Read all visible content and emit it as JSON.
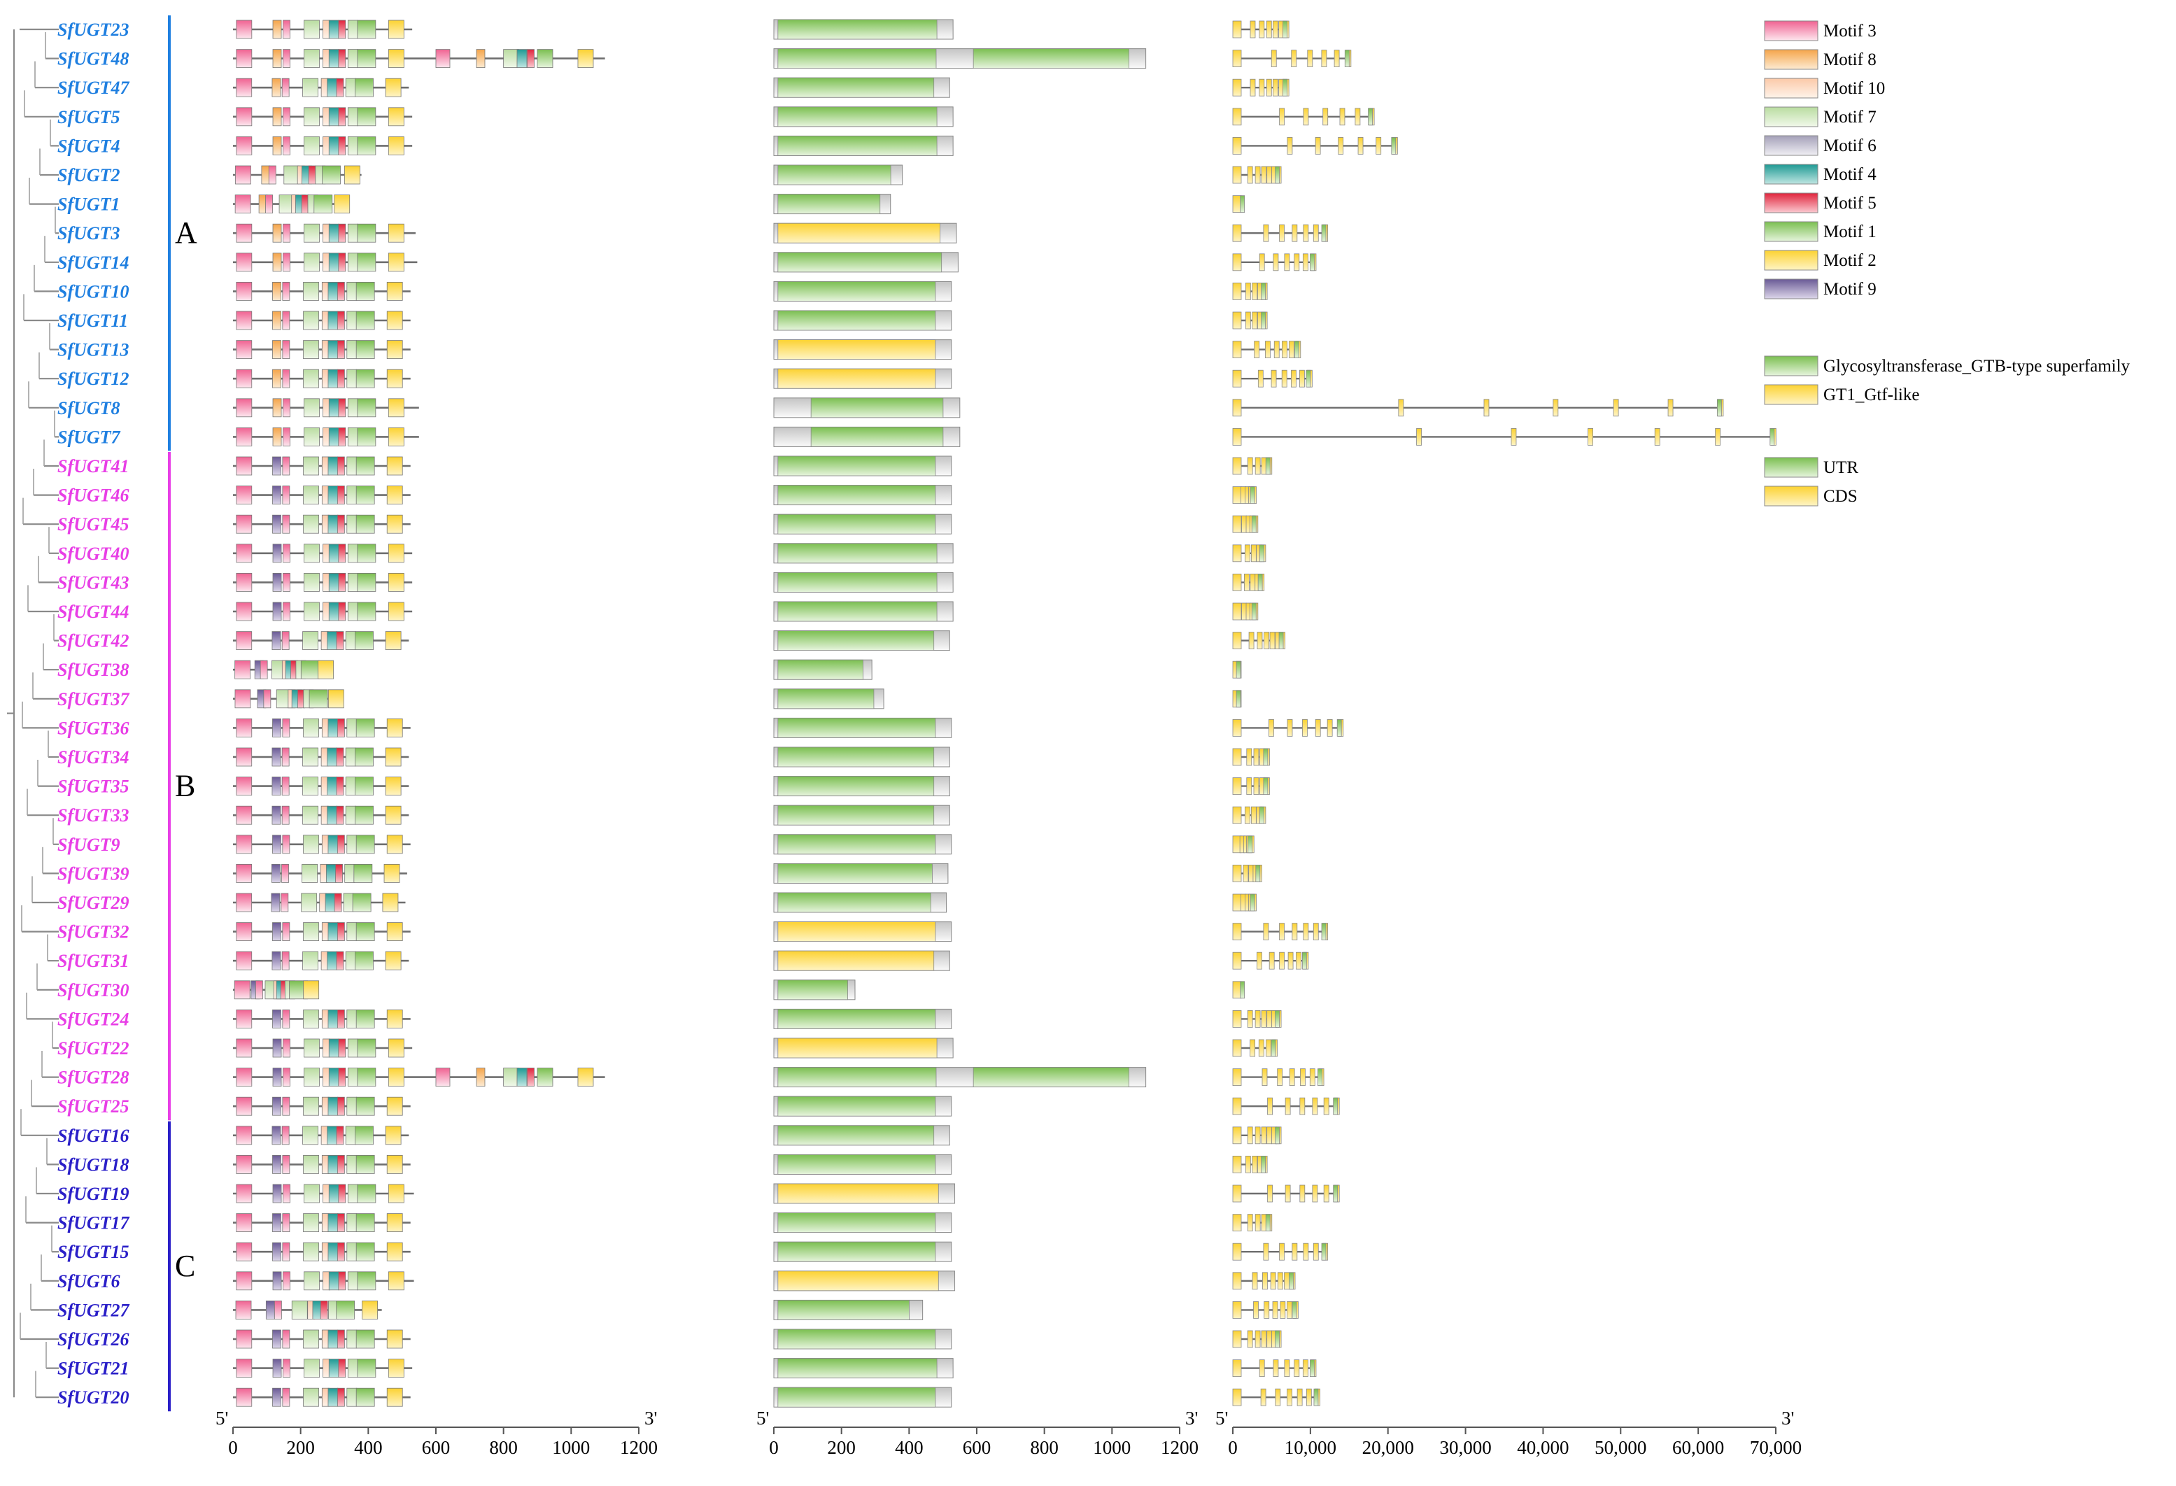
{
  "figure": {
    "clade_labels": [
      "A",
      "B",
      "C"
    ],
    "clade_colors": {
      "A": "#1f7fe0",
      "B": "#e83ee6",
      "C": "#2a1fc8"
    },
    "ends": {
      "five": "5'",
      "three": "3'"
    },
    "axes": [
      {
        "name": "motif-axis",
        "ticks": [
          "0",
          "200",
          "400",
          "600",
          "800",
          "1000",
          "1200"
        ]
      },
      {
        "name": "domain-axis",
        "ticks": [
          "0",
          "200",
          "400",
          "600",
          "800",
          "1000",
          "1200"
        ]
      },
      {
        "name": "gene-axis",
        "ticks": [
          "0",
          "10,000",
          "20,000",
          "30,000",
          "40,000",
          "50,000",
          "60,000",
          "70,000"
        ]
      }
    ]
  },
  "legend": {
    "motifs": [
      {
        "label": "Motif 3",
        "color": "#f06292"
      },
      {
        "label": "Motif 8",
        "color": "#f5a54a"
      },
      {
        "label": "Motif 10",
        "color": "#fbc9a8"
      },
      {
        "label": "Motif 7",
        "color": "#b9dca0"
      },
      {
        "label": "Motif 6",
        "color": "#a4a0b8"
      },
      {
        "label": "Motif 4",
        "color": "#1f9a94"
      },
      {
        "label": "Motif 5",
        "color": "#e0243c"
      },
      {
        "label": "Motif 1",
        "color": "#7bbf50"
      },
      {
        "label": "Motif 2",
        "color": "#fcd232"
      },
      {
        "label": "Motif 9",
        "color": "#6a5a96"
      }
    ],
    "domains": [
      {
        "label": "Glycosyltransferase_GTB-type superfamily",
        "color": "#7bbf50"
      },
      {
        "label": "GT1_Gtf-like",
        "color": "#fcd232"
      }
    ],
    "gene_parts": [
      {
        "label": "UTR",
        "color": "#7bbf50"
      },
      {
        "label": "CDS",
        "color": "#fcd232"
      }
    ]
  },
  "genes": [
    {
      "name": "SfUGT23",
      "clade": "A",
      "protein_length": 530,
      "domain": "GTB",
      "gene_length": 7000
    },
    {
      "name": "SfUGT48",
      "clade": "A",
      "protein_length": 1100,
      "domain": "GTB",
      "gene_length": 15000
    },
    {
      "name": "SfUGT47",
      "clade": "A",
      "protein_length": 520,
      "domain": "GTB",
      "gene_length": 7000
    },
    {
      "name": "SfUGT5",
      "clade": "A",
      "protein_length": 530,
      "domain": "GTB",
      "gene_length": 18000
    },
    {
      "name": "SfUGT4",
      "clade": "A",
      "protein_length": 530,
      "domain": "GTB",
      "gene_length": 21000
    },
    {
      "name": "SfUGT2",
      "clade": "A",
      "protein_length": 380,
      "domain": "GTB",
      "gene_length": 6000
    },
    {
      "name": "SfUGT1",
      "clade": "A",
      "protein_length": 345,
      "domain": "GTB",
      "gene_length": 1500
    },
    {
      "name": "SfUGT3",
      "clade": "A",
      "protein_length": 540,
      "domain": "GT1",
      "gene_length": 12000
    },
    {
      "name": "SfUGT14",
      "clade": "A",
      "protein_length": 545,
      "domain": "GTB",
      "gene_length": 10500
    },
    {
      "name": "SfUGT10",
      "clade": "A",
      "protein_length": 525,
      "domain": "GTB",
      "gene_length": 4200
    },
    {
      "name": "SfUGT11",
      "clade": "A",
      "protein_length": 525,
      "domain": "GTB",
      "gene_length": 4200
    },
    {
      "name": "SfUGT13",
      "clade": "A",
      "protein_length": 525,
      "domain": "GT1",
      "gene_length": 8500
    },
    {
      "name": "SfUGT12",
      "clade": "A",
      "protein_length": 525,
      "domain": "GT1",
      "gene_length": 10000
    },
    {
      "name": "SfUGT8",
      "clade": "A",
      "protein_length": 550,
      "domain": "GTB",
      "gene_length": 63000
    },
    {
      "name": "SfUGT7",
      "clade": "A",
      "protein_length": 550,
      "domain": "GTB",
      "gene_length": 69800
    },
    {
      "name": "SfUGT41",
      "clade": "B",
      "protein_length": 525,
      "domain": "GTB",
      "gene_length": 4800
    },
    {
      "name": "SfUGT46",
      "clade": "B",
      "protein_length": 525,
      "domain": "GTB",
      "gene_length": 2800
    },
    {
      "name": "SfUGT45",
      "clade": "B",
      "protein_length": 525,
      "domain": "GTB",
      "gene_length": 3000
    },
    {
      "name": "SfUGT40",
      "clade": "B",
      "protein_length": 530,
      "domain": "GTB",
      "gene_length": 4000
    },
    {
      "name": "SfUGT43",
      "clade": "B",
      "protein_length": 530,
      "domain": "GTB",
      "gene_length": 3800
    },
    {
      "name": "SfUGT44",
      "clade": "B",
      "protein_length": 530,
      "domain": "GTB",
      "gene_length": 3000
    },
    {
      "name": "SfUGT42",
      "clade": "B",
      "protein_length": 520,
      "domain": "GTB",
      "gene_length": 6500
    },
    {
      "name": "SfUGT38",
      "clade": "B",
      "protein_length": 290,
      "domain": "GTB",
      "gene_length": 1000
    },
    {
      "name": "SfUGT37",
      "clade": "B",
      "protein_length": 325,
      "domain": "GTB",
      "gene_length": 1000
    },
    {
      "name": "SfUGT36",
      "clade": "B",
      "protein_length": 525,
      "domain": "GTB",
      "gene_length": 14000
    },
    {
      "name": "SfUGT34",
      "clade": "B",
      "protein_length": 520,
      "domain": "GTB",
      "gene_length": 4500
    },
    {
      "name": "SfUGT35",
      "clade": "B",
      "protein_length": 520,
      "domain": "GTB",
      "gene_length": 4500
    },
    {
      "name": "SfUGT33",
      "clade": "B",
      "protein_length": 520,
      "domain": "GTB",
      "gene_length": 4000
    },
    {
      "name": "SfUGT9",
      "clade": "B",
      "protein_length": 525,
      "domain": "GTB",
      "gene_length": 2500
    },
    {
      "name": "SfUGT39",
      "clade": "B",
      "protein_length": 515,
      "domain": "GTB",
      "gene_length": 3500
    },
    {
      "name": "SfUGT29",
      "clade": "B",
      "protein_length": 510,
      "domain": "GTB",
      "gene_length": 2800
    },
    {
      "name": "SfUGT32",
      "clade": "B",
      "protein_length": 525,
      "domain": "GT1",
      "gene_length": 12000
    },
    {
      "name": "SfUGT31",
      "clade": "B",
      "protein_length": 520,
      "domain": "GT1",
      "gene_length": 9500
    },
    {
      "name": "SfUGT30",
      "clade": "B",
      "protein_length": 240,
      "domain": "GTB",
      "gene_length": 1500
    },
    {
      "name": "SfUGT24",
      "clade": "B",
      "protein_length": 525,
      "domain": "GTB",
      "gene_length": 6000
    },
    {
      "name": "SfUGT22",
      "clade": "B",
      "protein_length": 530,
      "domain": "GT1",
      "gene_length": 5500
    },
    {
      "name": "SfUGT28",
      "clade": "B",
      "protein_length": 1100,
      "domain": "GTB",
      "gene_length": 11500
    },
    {
      "name": "SfUGT25",
      "clade": "B",
      "protein_length": 525,
      "domain": "GTB",
      "gene_length": 13500
    },
    {
      "name": "SfUGT16",
      "clade": "C",
      "protein_length": 520,
      "domain": "GTB",
      "gene_length": 6000
    },
    {
      "name": "SfUGT18",
      "clade": "C",
      "protein_length": 525,
      "domain": "GTB",
      "gene_length": 4200
    },
    {
      "name": "SfUGT19",
      "clade": "C",
      "protein_length": 535,
      "domain": "GT1",
      "gene_length": 13500
    },
    {
      "name": "SfUGT17",
      "clade": "C",
      "protein_length": 525,
      "domain": "GTB",
      "gene_length": 4800
    },
    {
      "name": "SfUGT15",
      "clade": "C",
      "protein_length": 525,
      "domain": "GTB",
      "gene_length": 12000
    },
    {
      "name": "SfUGT6",
      "clade": "C",
      "protein_length": 535,
      "domain": "GT1",
      "gene_length": 7800
    },
    {
      "name": "SfUGT27",
      "clade": "C",
      "protein_length": 440,
      "domain": "GTB",
      "gene_length": 8200
    },
    {
      "name": "SfUGT26",
      "clade": "C",
      "protein_length": 525,
      "domain": "GTB",
      "gene_length": 6000
    },
    {
      "name": "SfUGT21",
      "clade": "C",
      "protein_length": 530,
      "domain": "GTB",
      "gene_length": 10500
    },
    {
      "name": "SfUGT20",
      "clade": "C",
      "protein_length": 525,
      "domain": "GTB",
      "gene_length": 11000
    }
  ]
}
